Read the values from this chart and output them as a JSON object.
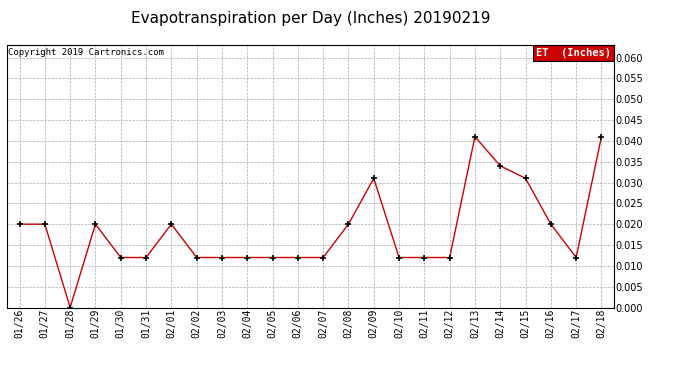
{
  "title": "Evapotranspiration per Day (Inches) 20190219",
  "copyright": "Copyright 2019 Cartronics.com",
  "legend_label": "ET  (Inches)",
  "legend_bg": "#cc0000",
  "legend_text_color": "#ffffff",
  "line_color": "#cc0000",
  "marker_color": "#000000",
  "dates": [
    "01/26",
    "01/27",
    "01/28",
    "01/29",
    "01/30",
    "01/31",
    "02/01",
    "02/02",
    "02/03",
    "02/04",
    "02/05",
    "02/06",
    "02/07",
    "02/08",
    "02/09",
    "02/10",
    "02/11",
    "02/12",
    "02/13",
    "02/14",
    "02/15",
    "02/16",
    "02/17",
    "02/18"
  ],
  "values": [
    0.02,
    0.02,
    0.0,
    0.02,
    0.012,
    0.012,
    0.02,
    0.012,
    0.012,
    0.012,
    0.012,
    0.012,
    0.012,
    0.02,
    0.031,
    0.012,
    0.012,
    0.012,
    0.041,
    0.034,
    0.031,
    0.02,
    0.012,
    0.041
  ],
  "ylim": [
    0.0,
    0.063
  ],
  "yticks": [
    0.0,
    0.005,
    0.01,
    0.015,
    0.02,
    0.025,
    0.03,
    0.035,
    0.04,
    0.045,
    0.05,
    0.055,
    0.06
  ],
  "background_color": "#ffffff",
  "grid_color": "#aaaaaa",
  "title_fontsize": 11,
  "copyright_fontsize": 6.5,
  "tick_fontsize": 7,
  "legend_fontsize": 7.5
}
